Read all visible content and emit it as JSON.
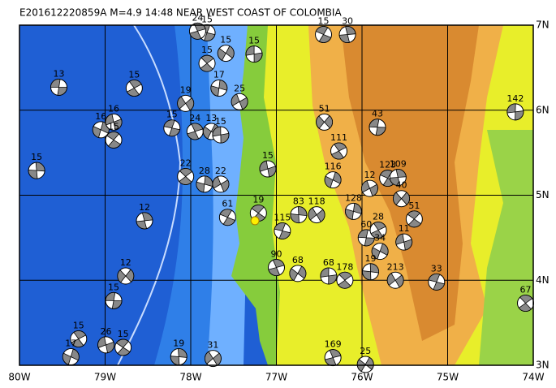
{
  "map": {
    "title": "E201612220859A  M=4.9 14:48 NEAR WEST COAST OF COLOMBIA",
    "xlim": [
      -80,
      -74
    ],
    "ylim": [
      3,
      7
    ],
    "xticks": [
      {
        "value": -80,
        "label": "80W"
      },
      {
        "value": -79,
        "label": "79W"
      },
      {
        "value": -78,
        "label": "78W"
      },
      {
        "value": -77,
        "label": "77W"
      },
      {
        "value": -76,
        "label": "76W"
      },
      {
        "value": -75,
        "label": "75W"
      },
      {
        "value": -74,
        "label": "74W"
      }
    ],
    "yticks": [
      {
        "value": 3,
        "label": "3N"
      },
      {
        "value": 4,
        "label": "4N"
      },
      {
        "value": 5,
        "label": "5N"
      },
      {
        "value": 6,
        "label": "6N"
      },
      {
        "value": 7,
        "label": "7N"
      }
    ],
    "epicenter": {
      "lon": -77.25,
      "lat": 4.7
    },
    "events": [
      {
        "lon": -79.54,
        "lat": 6.27,
        "depth": 13
      },
      {
        "lon": -78.66,
        "lat": 6.26,
        "depth": 15
      },
      {
        "lon": -79.05,
        "lat": 5.77,
        "depth": 16
      },
      {
        "lon": -78.9,
        "lat": 5.86,
        "depth": 16
      },
      {
        "lon": -78.9,
        "lat": 5.65,
        "depth": 15
      },
      {
        "lon": -79.8,
        "lat": 5.29,
        "depth": 15
      },
      {
        "lon": -78.06,
        "lat": 6.08,
        "depth": 19
      },
      {
        "lon": -78.22,
        "lat": 5.79,
        "depth": 15
      },
      {
        "lon": -77.95,
        "lat": 5.75,
        "depth": 24
      },
      {
        "lon": -77.76,
        "lat": 5.75,
        "depth": 13
      },
      {
        "lon": -77.65,
        "lat": 5.71,
        "depth": 15
      },
      {
        "lon": -78.06,
        "lat": 5.22,
        "depth": 22
      },
      {
        "lon": -77.84,
        "lat": 5.13,
        "depth": 28
      },
      {
        "lon": -77.65,
        "lat": 5.13,
        "depth": 22
      },
      {
        "lon": -77.57,
        "lat": 4.74,
        "depth": 61
      },
      {
        "lon": -78.54,
        "lat": 4.7,
        "depth": 12
      },
      {
        "lon": -78.76,
        "lat": 4.05,
        "depth": 12
      },
      {
        "lon": -78.9,
        "lat": 3.76,
        "depth": 15
      },
      {
        "lon": -79.31,
        "lat": 3.31,
        "depth": 15
      },
      {
        "lon": -79.4,
        "lat": 3.1,
        "depth": 17
      },
      {
        "lon": -78.99,
        "lat": 3.24,
        "depth": 26
      },
      {
        "lon": -78.79,
        "lat": 3.21,
        "depth": 15
      },
      {
        "lon": -78.14,
        "lat": 3.1,
        "depth": 19
      },
      {
        "lon": -77.74,
        "lat": 3.08,
        "depth": 31
      },
      {
        "lon": -77.81,
        "lat": 6.91,
        "depth": 15
      },
      {
        "lon": -77.92,
        "lat": 6.93,
        "depth": 24
      },
      {
        "lon": -77.59,
        "lat": 6.67,
        "depth": 15
      },
      {
        "lon": -77.26,
        "lat": 6.66,
        "depth": 15
      },
      {
        "lon": -77.81,
        "lat": 6.55,
        "depth": 15
      },
      {
        "lon": -77.67,
        "lat": 6.26,
        "depth": 17
      },
      {
        "lon": -77.43,
        "lat": 6.1,
        "depth": 25
      },
      {
        "lon": -76.45,
        "lat": 6.89,
        "depth": 15
      },
      {
        "lon": -76.17,
        "lat": 6.89,
        "depth": 30
      },
      {
        "lon": -76.44,
        "lat": 5.86,
        "depth": 51
      },
      {
        "lon": -75.82,
        "lat": 5.8,
        "depth": 43
      },
      {
        "lon": -76.27,
        "lat": 5.52,
        "depth": 111
      },
      {
        "lon": -76.34,
        "lat": 5.18,
        "depth": 116
      },
      {
        "lon": -77.1,
        "lat": 5.31,
        "depth": 15
      },
      {
        "lon": -77.21,
        "lat": 4.79,
        "depth": 19
      },
      {
        "lon": -76.74,
        "lat": 4.77,
        "depth": 83
      },
      {
        "lon": -76.53,
        "lat": 4.77,
        "depth": 118
      },
      {
        "lon": -76.93,
        "lat": 4.58,
        "depth": 115
      },
      {
        "lon": -77.0,
        "lat": 4.15,
        "depth": 90
      },
      {
        "lon": -76.75,
        "lat": 4.08,
        "depth": 68
      },
      {
        "lon": -76.39,
        "lat": 4.05,
        "depth": 68
      },
      {
        "lon": -76.2,
        "lat": 4.0,
        "depth": 178
      },
      {
        "lon": -76.1,
        "lat": 4.81,
        "depth": 128
      },
      {
        "lon": -75.91,
        "lat": 5.08,
        "depth": 12
      },
      {
        "lon": -75.7,
        "lat": 5.2,
        "depth": 123
      },
      {
        "lon": -75.58,
        "lat": 5.21,
        "depth": 109
      },
      {
        "lon": -75.54,
        "lat": 4.96,
        "depth": 40
      },
      {
        "lon": -75.95,
        "lat": 4.5,
        "depth": 60
      },
      {
        "lon": -75.81,
        "lat": 4.59,
        "depth": 28
      },
      {
        "lon": -75.79,
        "lat": 4.34,
        "depth": 34
      },
      {
        "lon": -75.51,
        "lat": 4.45,
        "depth": 11
      },
      {
        "lon": -75.39,
        "lat": 4.72,
        "depth": 51
      },
      {
        "lon": -75.9,
        "lat": 4.1,
        "depth": 19
      },
      {
        "lon": -75.61,
        "lat": 4.0,
        "depth": 213
      },
      {
        "lon": -75.13,
        "lat": 3.98,
        "depth": 33
      },
      {
        "lon": -76.34,
        "lat": 3.09,
        "depth": 169
      },
      {
        "lon": -75.96,
        "lat": 3.01,
        "depth": 25
      },
      {
        "lon": -74.21,
        "lat": 5.98,
        "depth": 142
      },
      {
        "lon": -74.09,
        "lat": 3.73,
        "depth": 67
      }
    ]
  }
}
